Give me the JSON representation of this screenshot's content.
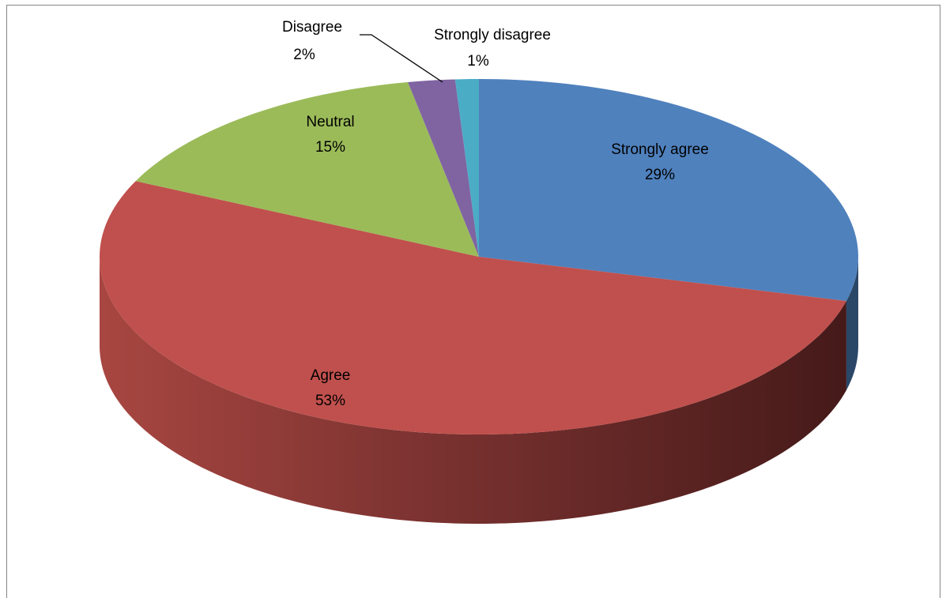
{
  "chart_data": {
    "type": "pie",
    "categories": [
      "Strongly agree",
      "Agree",
      "Neutral",
      "Disagree",
      "Strongly disagree"
    ],
    "values": [
      29,
      53,
      15,
      2,
      1
    ],
    "value_labels": [
      "29%",
      "53%",
      "15%",
      "2%",
      "1%"
    ],
    "colors": [
      "#4f81bd",
      "#c0504d",
      "#9bbb59",
      "#8064a2",
      "#4bacc6"
    ]
  }
}
